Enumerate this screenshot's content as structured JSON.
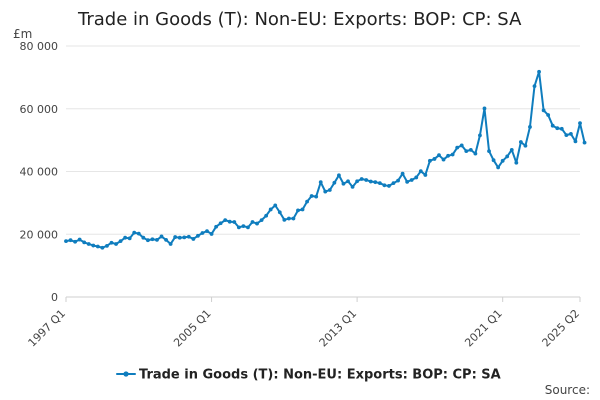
{
  "chart_data": {
    "type": "line",
    "title": "Trade in Goods (T): Non-EU: Exports: BOP: CP: SA",
    "unit_label": "£m",
    "source_label": "Source:",
    "x_start": "1997 Q1",
    "x_end": "2025 Q2",
    "x_tick_labels": [
      "1997 Q1",
      "2005 Q1",
      "2013 Q1",
      "2021 Q1",
      "2025 Q2"
    ],
    "y_ticks": [
      0,
      20000,
      40000,
      60000,
      80000
    ],
    "y_tick_labels": [
      "0",
      "20 000",
      "40 000",
      "60 000",
      "80 000"
    ],
    "ylim": [
      0,
      80000
    ],
    "grid": true,
    "legend_position": "bottom",
    "color": "#0f7dbe",
    "series": [
      {
        "name": "Trade in Goods (T): Non-EU: Exports: BOP: CP: SA",
        "values": [
          17800,
          18100,
          17600,
          18300,
          17400,
          16900,
          16400,
          16100,
          15700,
          16300,
          17300,
          16900,
          17800,
          18900,
          18700,
          20500,
          20200,
          18900,
          18100,
          18400,
          18200,
          19300,
          18200,
          16900,
          19100,
          18900,
          19000,
          19200,
          18500,
          19500,
          20400,
          21000,
          20100,
          22400,
          23500,
          24500,
          24000,
          23900,
          22200,
          22600,
          22200,
          23900,
          23400,
          24500,
          25900,
          27900,
          29200,
          27000,
          24600,
          25000,
          25000,
          27600,
          27900,
          30400,
          32200,
          32000,
          36600,
          33600,
          34100,
          36400,
          38800,
          36100,
          36900,
          35100,
          36900,
          37600,
          37300,
          36800,
          36600,
          36300,
          35600,
          35400,
          36300,
          37100,
          39300,
          36700,
          37300,
          38100,
          40100,
          38900,
          43400,
          44000,
          45200,
          43800,
          45000,
          45400,
          47600,
          48300,
          46500,
          46900,
          45700,
          51500,
          60100,
          46500,
          43600,
          41300,
          43400,
          44800,
          46900,
          42800,
          49400,
          48200,
          54200,
          67200,
          71800,
          59500,
          58000,
          54600,
          53800,
          53600,
          51600,
          52000,
          49600,
          55400,
          49200
        ]
      }
    ]
  }
}
